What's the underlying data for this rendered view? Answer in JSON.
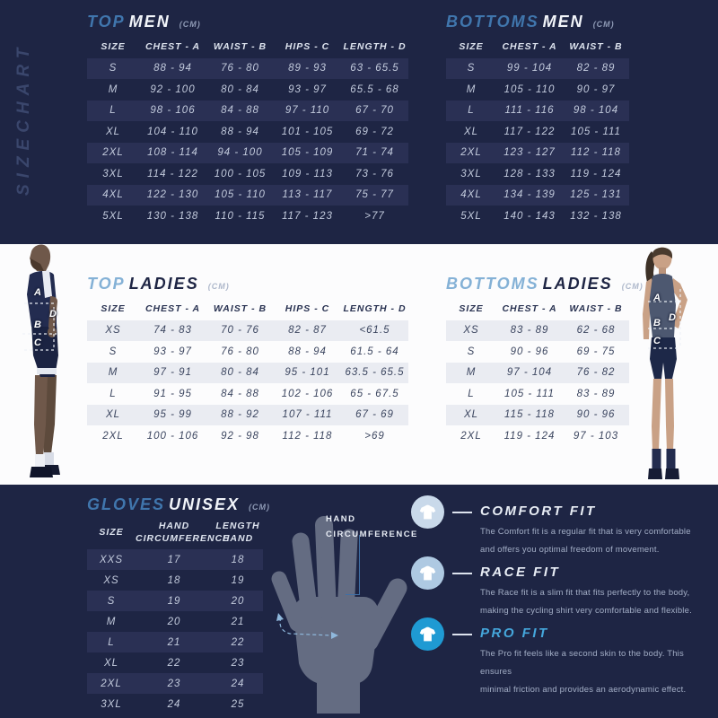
{
  "vertical_title": "SIZECHART",
  "colors": {
    "background_dark": "#1e2544",
    "background_light": "#fcfcfd",
    "row_stripe_dark": "#2a3054",
    "row_stripe_light": "#eaecf2",
    "accent_blue_on_dark": "#4076ad",
    "accent_blue_on_light": "#84b1d6",
    "pro_fit_title": "#45a7dc"
  },
  "tables": {
    "top_men": {
      "title_accent": "TOP",
      "title_main": "MEN",
      "unit": "(CM)",
      "headers": [
        "SIZE",
        "CHEST - A",
        "WAIST - B",
        "HIPS - C",
        "LENGTH - D"
      ],
      "rows": [
        [
          "S",
          "88 - 94",
          "76 - 80",
          "89 - 93",
          "63 - 65.5"
        ],
        [
          "M",
          "92 - 100",
          "80 - 84",
          "93 - 97",
          "65.5 - 68"
        ],
        [
          "L",
          "98 - 106",
          "84 - 88",
          "97 - 110",
          "67 - 70"
        ],
        [
          "XL",
          "104 - 110",
          "88 - 94",
          "101 - 105",
          "69 - 72"
        ],
        [
          "2XL",
          "108 - 114",
          "94 - 100",
          "105 - 109",
          "71 - 74"
        ],
        [
          "3XL",
          "114 - 122",
          "100 - 105",
          "109 - 113",
          "73 - 76"
        ],
        [
          "4XL",
          "122 - 130",
          "105 - 110",
          "113 - 117",
          "75 - 77"
        ],
        [
          "5XL",
          "130 - 138",
          "110 - 115",
          "117 - 123",
          ">77"
        ]
      ]
    },
    "bottoms_men": {
      "title_accent": "BOTTOMS",
      "title_main": "MEN",
      "unit": "(CM)",
      "headers": [
        "SIZE",
        "CHEST - A",
        "WAIST - B"
      ],
      "rows": [
        [
          "S",
          "99 - 104",
          "82 - 89"
        ],
        [
          "M",
          "105 - 110",
          "90 - 97"
        ],
        [
          "L",
          "111 - 116",
          "98 - 104"
        ],
        [
          "XL",
          "117 - 122",
          "105 - 111"
        ],
        [
          "2XL",
          "123 - 127",
          "112 - 118"
        ],
        [
          "3XL",
          "128 - 133",
          "119 - 124"
        ],
        [
          "4XL",
          "134 - 139",
          "125 - 131"
        ],
        [
          "5XL",
          "140 - 143",
          "132 - 138"
        ]
      ]
    },
    "top_ladies": {
      "title_accent": "TOP",
      "title_main": "LADIES",
      "unit": "(CM)",
      "headers": [
        "SIZE",
        "CHEST - A",
        "WAIST - B",
        "HIPS - C",
        "LENGTH - D"
      ],
      "rows": [
        [
          "XS",
          "74 - 83",
          "70 - 76",
          "82 - 87",
          "<61.5"
        ],
        [
          "S",
          "93 - 97",
          "76 - 80",
          "88 - 94",
          "61.5 - 64"
        ],
        [
          "M",
          "97 - 91",
          "80 - 84",
          "95 - 101",
          "63.5 - 65.5"
        ],
        [
          "L",
          "91 - 95",
          "84 - 88",
          "102 - 106",
          "65 - 67.5"
        ],
        [
          "XL",
          "95 - 99",
          "88 - 92",
          "107 - 111",
          "67 - 69"
        ],
        [
          "2XL",
          "100 - 106",
          "92 - 98",
          "112 - 118",
          ">69"
        ]
      ]
    },
    "bottoms_ladies": {
      "title_accent": "BOTTOMS",
      "title_main": "LADIES",
      "unit": "(CM)",
      "headers": [
        "SIZE",
        "CHEST - A",
        "WAIST - B"
      ],
      "rows": [
        [
          "XS",
          "83 - 89",
          "62 - 68"
        ],
        [
          "S",
          "90 - 96",
          "69 - 75"
        ],
        [
          "M",
          "97 - 104",
          "76 - 82"
        ],
        [
          "L",
          "105 - 111",
          "83 - 89"
        ],
        [
          "XL",
          "115 - 118",
          "90 - 96"
        ],
        [
          "2XL",
          "119 - 124",
          "97 - 103"
        ]
      ]
    },
    "gloves": {
      "title_accent": "GLOVES",
      "title_main": "UNISEX",
      "unit": "(CM)",
      "headers": [
        "SIZE",
        "HAND\nCIRCUMFERENCE",
        "LENGTH\nHAND"
      ],
      "rows": [
        [
          "XXS",
          "17",
          "18"
        ],
        [
          "XS",
          "18",
          "19"
        ],
        [
          "S",
          "19",
          "20"
        ],
        [
          "M",
          "20",
          "21"
        ],
        [
          "L",
          "21",
          "22"
        ],
        [
          "XL",
          "22",
          "23"
        ],
        [
          "2XL",
          "23",
          "24"
        ],
        [
          "3XL",
          "24",
          "25"
        ]
      ]
    }
  },
  "figures": {
    "male": {
      "letters": {
        "a": "A",
        "b": "B",
        "c": "C",
        "d": "D"
      }
    },
    "female": {
      "letters": {
        "a": "A",
        "b": "B",
        "c": "C",
        "d": "D"
      }
    }
  },
  "hand_diagram": {
    "label": "HAND CIRCUMFERENCE"
  },
  "fits": [
    {
      "name": "COMFORT FIT",
      "lines": [
        "The Comfort fit is a regular fit that is very comfortable",
        "and offers you optimal freedom of movement."
      ],
      "icon": "tshirt-icon",
      "icon_color": "#c9d9ea"
    },
    {
      "name": "RACE FIT",
      "lines": [
        "The Race fit is a slim fit that fits perfectly to the body,",
        "making the cycling shirt very comfortable and flexible."
      ],
      "icon": "tshirt-icon",
      "icon_color": "#aec9e2"
    },
    {
      "name": "PRO FIT",
      "lines": [
        "The Pro fit feels like a second skin to the body. This ensures",
        "minimal friction and provides an aerodynamic effect."
      ],
      "icon": "tshirt-icon",
      "icon_color": "#1f9ad3"
    }
  ]
}
